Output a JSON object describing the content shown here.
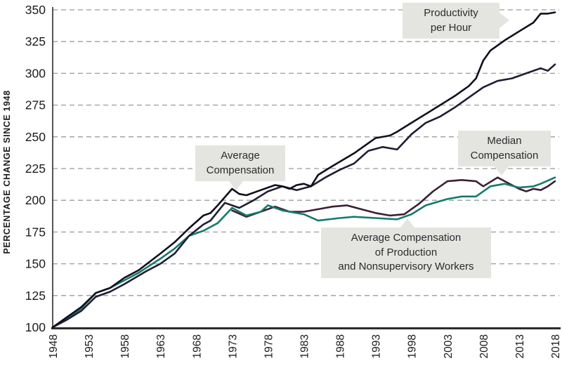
{
  "chart_data": {
    "type": "line",
    "title": "",
    "xlabel": "",
    "ylabel": "PERCENTAGE CHANGE SINCE 1948",
    "xlim": [
      1948,
      2018
    ],
    "ylim": [
      100,
      350
    ],
    "x_ticks": [
      1948,
      1953,
      1958,
      1963,
      1968,
      1973,
      1978,
      1983,
      1988,
      1993,
      1998,
      2003,
      2008,
      2013,
      2018
    ],
    "y_ticks": [
      100,
      125,
      150,
      175,
      200,
      225,
      250,
      275,
      300,
      325,
      350
    ],
    "grid": "horizontal-dashed",
    "grid_color": "#9b9b9b",
    "axis_color": "#2b2b2b",
    "legend_position": "callouts-on-chart",
    "series": [
      {
        "name": "Median Compensation",
        "color": "#3e1f33",
        "points": [
          [
            1973,
            192
          ],
          [
            1975,
            187
          ],
          [
            1977,
            191
          ],
          [
            1979,
            195
          ],
          [
            1981,
            191
          ],
          [
            1983,
            191
          ],
          [
            1985,
            193
          ],
          [
            1987,
            195
          ],
          [
            1989,
            196
          ],
          [
            1991,
            193
          ],
          [
            1993,
            190
          ],
          [
            1995,
            188
          ],
          [
            1997,
            189
          ],
          [
            1999,
            197
          ],
          [
            2001,
            207
          ],
          [
            2003,
            215
          ],
          [
            2005,
            216
          ],
          [
            2007,
            215
          ],
          [
            2008,
            211
          ],
          [
            2010,
            218
          ],
          [
            2012,
            212
          ],
          [
            2013,
            209
          ],
          [
            2014,
            207
          ],
          [
            2015,
            209
          ],
          [
            2016,
            208
          ],
          [
            2017,
            211
          ],
          [
            2018,
            215
          ]
        ]
      },
      {
        "name": "Average Compensation of Production and Nonsupervisory Workers",
        "color": "#157a6c",
        "points": [
          [
            1948,
            100
          ],
          [
            1950,
            107
          ],
          [
            1952,
            115
          ],
          [
            1954,
            127
          ],
          [
            1956,
            131
          ],
          [
            1958,
            137
          ],
          [
            1960,
            143
          ],
          [
            1963,
            154
          ],
          [
            1965,
            162
          ],
          [
            1967,
            172
          ],
          [
            1969,
            176
          ],
          [
            1971,
            182
          ],
          [
            1973,
            194
          ],
          [
            1975,
            188
          ],
          [
            1977,
            191
          ],
          [
            1978,
            196
          ],
          [
            1980,
            192
          ],
          [
            1983,
            189
          ],
          [
            1985,
            184
          ],
          [
            1988,
            186
          ],
          [
            1990,
            187
          ],
          [
            1993,
            186
          ],
          [
            1996,
            185
          ],
          [
            1998,
            189
          ],
          [
            2000,
            196
          ],
          [
            2003,
            201
          ],
          [
            2005,
            203
          ],
          [
            2007,
            203
          ],
          [
            2009,
            211
          ],
          [
            2011,
            213
          ],
          [
            2013,
            210
          ],
          [
            2015,
            211
          ],
          [
            2016,
            213
          ],
          [
            2018,
            218
          ]
        ]
      },
      {
        "name": "Average Compensation",
        "color": "#1e1e33",
        "points": [
          [
            1948,
            100
          ],
          [
            1950,
            106
          ],
          [
            1952,
            113
          ],
          [
            1954,
            124
          ],
          [
            1956,
            128
          ],
          [
            1958,
            134
          ],
          [
            1961,
            144
          ],
          [
            1963,
            150
          ],
          [
            1965,
            158
          ],
          [
            1967,
            172
          ],
          [
            1969,
            181
          ],
          [
            1970,
            184
          ],
          [
            1972,
            198
          ],
          [
            1974,
            194
          ],
          [
            1976,
            200
          ],
          [
            1978,
            207
          ],
          [
            1980,
            211
          ],
          [
            1982,
            208
          ],
          [
            1984,
            211
          ],
          [
            1986,
            218
          ],
          [
            1988,
            224
          ],
          [
            1990,
            229
          ],
          [
            1992,
            239
          ],
          [
            1994,
            242
          ],
          [
            1996,
            240
          ],
          [
            1998,
            252
          ],
          [
            2000,
            261
          ],
          [
            2002,
            266
          ],
          [
            2004,
            273
          ],
          [
            2006,
            281
          ],
          [
            2008,
            289
          ],
          [
            2010,
            294
          ],
          [
            2012,
            296
          ],
          [
            2014,
            300
          ],
          [
            2016,
            304
          ],
          [
            2017,
            302
          ],
          [
            2018,
            307
          ]
        ]
      },
      {
        "name": "Productivity per Hour",
        "color": "#10101c",
        "points": [
          [
            1948,
            100
          ],
          [
            1950,
            108
          ],
          [
            1952,
            116
          ],
          [
            1954,
            127
          ],
          [
            1956,
            131
          ],
          [
            1958,
            139
          ],
          [
            1960,
            145
          ],
          [
            1963,
            158
          ],
          [
            1965,
            167
          ],
          [
            1967,
            178
          ],
          [
            1969,
            188
          ],
          [
            1970,
            190
          ],
          [
            1971,
            196
          ],
          [
            1973,
            209
          ],
          [
            1974,
            205
          ],
          [
            1975,
            204
          ],
          [
            1977,
            208
          ],
          [
            1979,
            212
          ],
          [
            1980,
            211
          ],
          [
            1981,
            209
          ],
          [
            1982,
            212
          ],
          [
            1983,
            213
          ],
          [
            1984,
            211
          ],
          [
            1985,
            220
          ],
          [
            1987,
            227
          ],
          [
            1990,
            237
          ],
          [
            1992,
            245
          ],
          [
            1993,
            249
          ],
          [
            1995,
            251
          ],
          [
            1996,
            254
          ],
          [
            1998,
            261
          ],
          [
            2000,
            268
          ],
          [
            2002,
            275
          ],
          [
            2004,
            282
          ],
          [
            2006,
            290
          ],
          [
            2007,
            296
          ],
          [
            2008,
            310
          ],
          [
            2009,
            318
          ],
          [
            2011,
            326
          ],
          [
            2013,
            333
          ],
          [
            2015,
            340
          ],
          [
            2016,
            347
          ],
          [
            2017,
            347
          ],
          [
            2018,
            348
          ]
        ]
      }
    ],
    "callouts": [
      {
        "id": "productivity",
        "lines": [
          "Productivity",
          "per Hour"
        ]
      },
      {
        "id": "average-compensation",
        "lines": [
          "Average",
          "Compensation"
        ]
      },
      {
        "id": "median-compensation",
        "lines": [
          "Median",
          "Compensation"
        ]
      },
      {
        "id": "production-workers",
        "lines": [
          "Average Compensation",
          "of Production",
          "and Nonsupervisory Workers"
        ]
      }
    ],
    "callout_bg_color": "#e4e4e1"
  }
}
